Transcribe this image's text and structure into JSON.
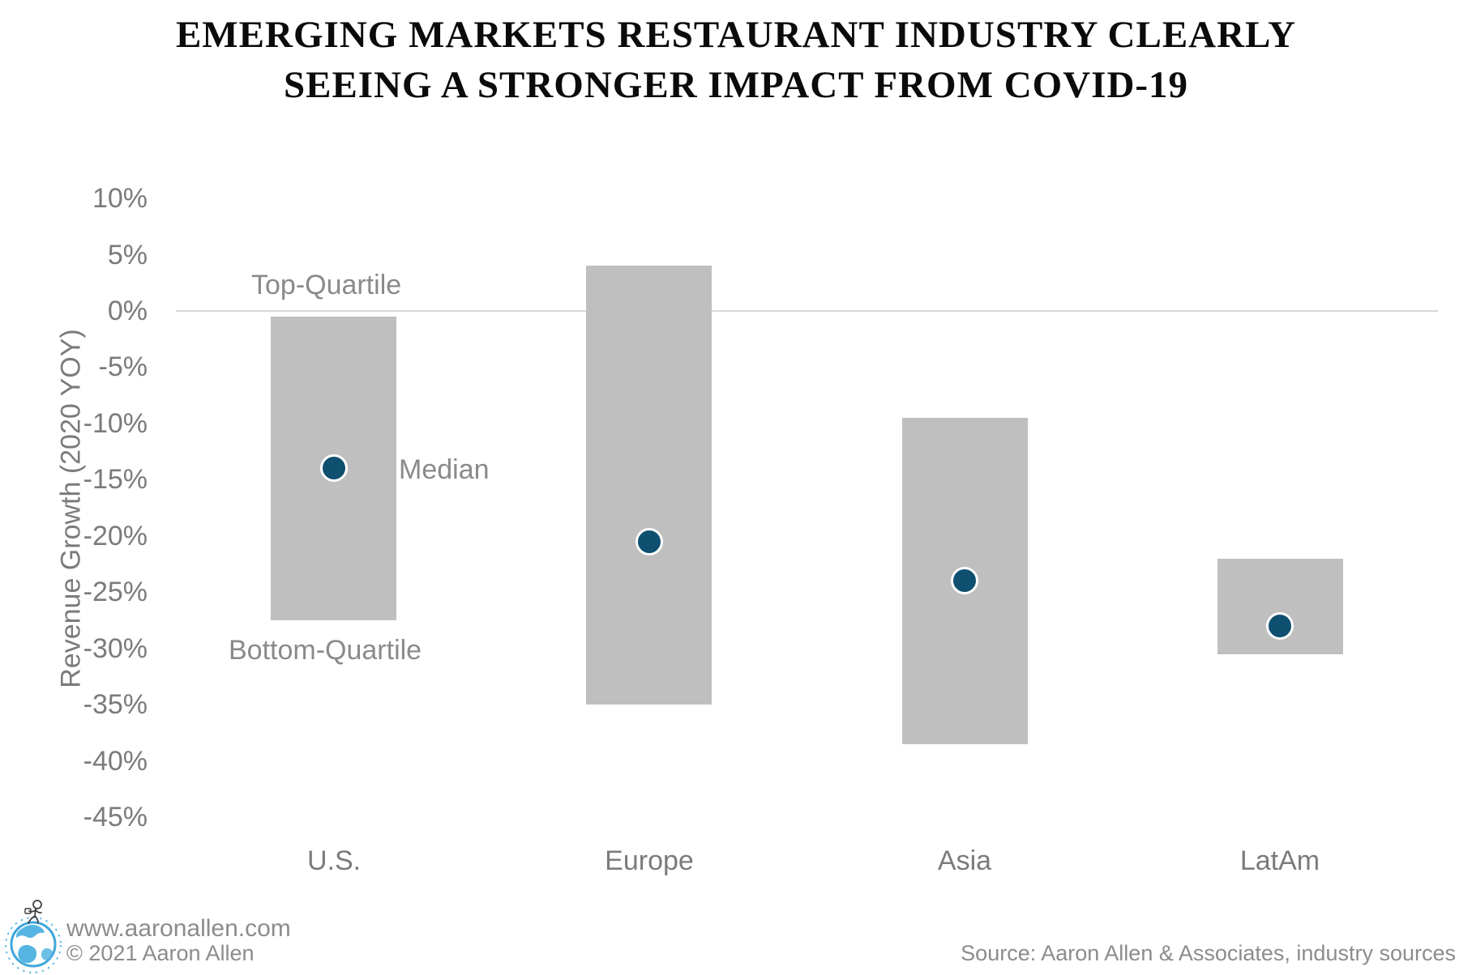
{
  "title": {
    "line1": "EMERGING MARKETS RESTAURANT INDUSTRY CLEARLY",
    "line2": "SEEING A STRONGER IMPACT FROM COVID-19"
  },
  "annotations": {
    "top_quartile": "Top-Quartile",
    "median": "Median",
    "bottom_quartile": "Bottom-Quartile"
  },
  "footer": {
    "website": "www.aaronallen.com",
    "copyright": "© 2021 Aaron Allen",
    "source": "Source: Aaron Allen & Associates, industry sources",
    "logo": "globe-with-running-figure"
  },
  "colors": {
    "bar": "#bfbfbf",
    "median_dot": "#0f4f70",
    "dot_ring": "#ffffff",
    "gridline": "#d9d9d9",
    "axis_text": "#7b7b7b",
    "annotation_text": "#8a8a8a",
    "title_text": "#0b0b0b",
    "logo_blue": "#45aede"
  },
  "chart_data": {
    "type": "bar",
    "subtype": "floating-quartile-range-with-median-dot",
    "title": "EMERGING MARKETS RESTAURANT INDUSTRY CLEARLY SEEING A STRONGER IMPACT FROM COVID-19",
    "xlabel": "",
    "ylabel": "Revenue Growth (2020 YOY)",
    "categories": [
      "U.S.",
      "Europe",
      "Asia",
      "LatAm"
    ],
    "series": [
      {
        "name": "Top-Quartile",
        "values": [
          -0.5,
          4,
          -9.5,
          -22
        ]
      },
      {
        "name": "Median",
        "values": [
          -14,
          -20.5,
          -24,
          -28
        ]
      },
      {
        "name": "Bottom-Quartile",
        "values": [
          -27.5,
          -35,
          -38.5,
          -30.5
        ]
      }
    ],
    "y_ticks": [
      {
        "label": "10%",
        "value": 10
      },
      {
        "label": "5%",
        "value": 5
      },
      {
        "label": "0%",
        "value": 0
      },
      {
        "label": "-5%",
        "value": -5
      },
      {
        "label": "-10%",
        "value": -10
      },
      {
        "label": "-15%",
        "value": -15
      },
      {
        "label": "-20%",
        "value": -20
      },
      {
        "label": "-25%",
        "value": -25
      },
      {
        "label": "-30%",
        "value": -30
      },
      {
        "label": "-35%",
        "value": -35
      },
      {
        "label": "-40%",
        "value": -40
      },
      {
        "label": "-45%",
        "value": -45
      }
    ],
    "ylim": [
      -45,
      10
    ],
    "grid": "zero-line-only",
    "legend": "inline-annotations"
  }
}
